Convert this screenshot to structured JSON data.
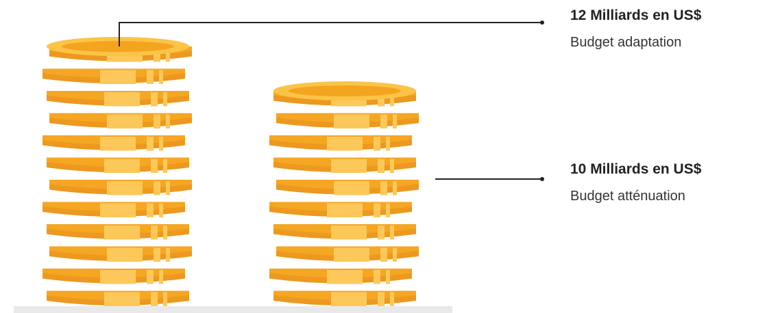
{
  "chart_data": {
    "type": "coin-stack",
    "categories": [
      "Budget adaptation",
      "Budget atténuation"
    ],
    "values": [
      12,
      10
    ],
    "value_labels": [
      "12 Milliards en US$",
      "10 Milliards en US$"
    ],
    "color": "#f5a623"
  }
}
